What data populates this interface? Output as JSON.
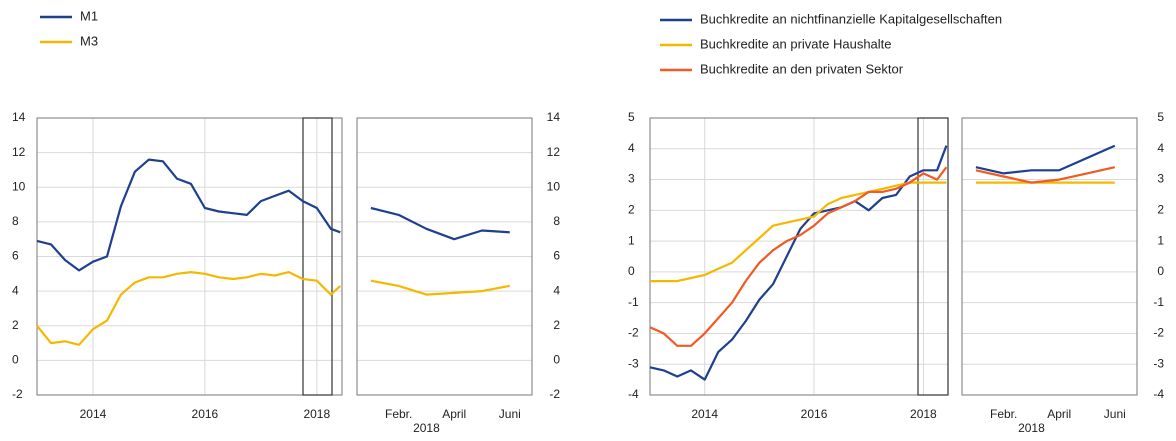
{
  "chart_data": [
    {
      "type": "line",
      "grid": true,
      "x": [
        2013.0,
        2013.25,
        2013.5,
        2013.75,
        2014.0,
        2014.25,
        2014.5,
        2014.75,
        2015.0,
        2015.25,
        2015.5,
        2015.75,
        2016.0,
        2016.25,
        2016.5,
        2016.75,
        2017.0,
        2017.25,
        2017.5,
        2017.75,
        2018.0,
        2018.25,
        2018.42
      ],
      "xlim": [
        2013.0,
        2018.45
      ],
      "xticks": [
        2014,
        2016,
        2018
      ],
      "ylim": [
        -2,
        14
      ],
      "yticks": [
        -2,
        0,
        2,
        4,
        6,
        8,
        10,
        12,
        14
      ],
      "series": [
        {
          "name": "M1",
          "color": "#1f3f8f",
          "values": [
            6.9,
            6.7,
            5.8,
            5.2,
            5.7,
            6.0,
            8.9,
            10.9,
            11.6,
            11.5,
            10.5,
            10.2,
            8.8,
            8.6,
            8.5,
            8.4,
            9.2,
            9.5,
            9.8,
            9.2,
            8.8,
            7.6,
            7.4
          ]
        },
        {
          "name": "M3",
          "color": "#f5b800",
          "values": [
            2.0,
            1.0,
            1.1,
            0.9,
            1.8,
            2.3,
            3.8,
            4.5,
            4.8,
            4.8,
            5.0,
            5.1,
            5.0,
            4.8,
            4.7,
            4.8,
            5.0,
            4.9,
            5.1,
            4.7,
            4.6,
            3.8,
            4.3
          ]
        }
      ]
    },
    {
      "type": "line",
      "grid": true,
      "categories": [
        null,
        "Febr.",
        null,
        "April",
        null,
        "Juni"
      ],
      "xlabel": "2018",
      "ylim": [
        -2,
        14
      ],
      "yticks": [
        -2,
        0,
        2,
        4,
        6,
        8,
        10,
        12,
        14
      ],
      "series": [
        {
          "color": "#1f3f8f",
          "values": [
            8.8,
            8.4,
            7.6,
            7.0,
            7.5,
            7.4
          ]
        },
        {
          "color": "#f5b800",
          "values": [
            4.6,
            4.3,
            3.8,
            3.9,
            4.0,
            4.3
          ]
        }
      ]
    },
    {
      "type": "line",
      "grid": true,
      "x": [
        2013.0,
        2013.25,
        2013.5,
        2013.75,
        2014.0,
        2014.25,
        2014.5,
        2014.75,
        2015.0,
        2015.25,
        2015.5,
        2015.75,
        2016.0,
        2016.25,
        2016.5,
        2016.75,
        2017.0,
        2017.25,
        2017.5,
        2017.75,
        2018.0,
        2018.25,
        2018.42
      ],
      "xlim": [
        2013.0,
        2018.45
      ],
      "xticks": [
        2014,
        2016,
        2018
      ],
      "ylim": [
        -4,
        5
      ],
      "yticks": [
        -4,
        -3,
        -2,
        -1,
        0,
        1,
        2,
        3,
        4,
        5
      ],
      "series": [
        {
          "name": "Buchkredite an nichtfinanzielle Kapitalgesellschaften",
          "color": "#1f3f8f",
          "values": [
            -3.1,
            -3.2,
            -3.4,
            -3.2,
            -3.5,
            -2.6,
            -2.2,
            -1.6,
            -0.9,
            -0.4,
            0.5,
            1.4,
            1.9,
            2.0,
            2.1,
            2.3,
            2.0,
            2.4,
            2.5,
            3.1,
            3.3,
            3.3,
            4.1
          ]
        },
        {
          "name": "Buchkredite an private Haushalte",
          "color": "#f5b800",
          "values": [
            -0.3,
            -0.3,
            -0.3,
            -0.2,
            -0.1,
            0.1,
            0.3,
            0.7,
            1.1,
            1.5,
            1.6,
            1.7,
            1.8,
            2.2,
            2.4,
            2.5,
            2.6,
            2.7,
            2.8,
            2.9,
            2.9,
            2.9,
            2.9
          ]
        },
        {
          "name": "Buchkredite an den privaten Sektor",
          "color": "#f05a23",
          "values": [
            -1.8,
            -2.0,
            -2.4,
            -2.4,
            -2.0,
            -1.5,
            -1.0,
            -0.3,
            0.3,
            0.7,
            1.0,
            1.2,
            1.5,
            1.9,
            2.1,
            2.3,
            2.6,
            2.6,
            2.7,
            2.9,
            3.2,
            3.0,
            3.4
          ]
        }
      ]
    },
    {
      "type": "line",
      "grid": true,
      "categories": [
        null,
        "Febr.",
        null,
        "April",
        null,
        "Juni"
      ],
      "xlabel": "2018",
      "ylim": [
        -4,
        5
      ],
      "yticks": [
        -4,
        -3,
        -2,
        -1,
        0,
        1,
        2,
        3,
        4,
        5
      ],
      "series": [
        {
          "color": "#1f3f8f",
          "values": [
            3.4,
            3.2,
            3.3,
            3.3,
            3.7,
            4.1
          ]
        },
        {
          "color": "#f5b800",
          "values": [
            2.9,
            2.9,
            2.9,
            2.9,
            2.9,
            2.9
          ]
        },
        {
          "color": "#f05a23",
          "values": [
            3.3,
            3.1,
            2.9,
            3.0,
            3.2,
            3.4
          ]
        }
      ]
    }
  ]
}
